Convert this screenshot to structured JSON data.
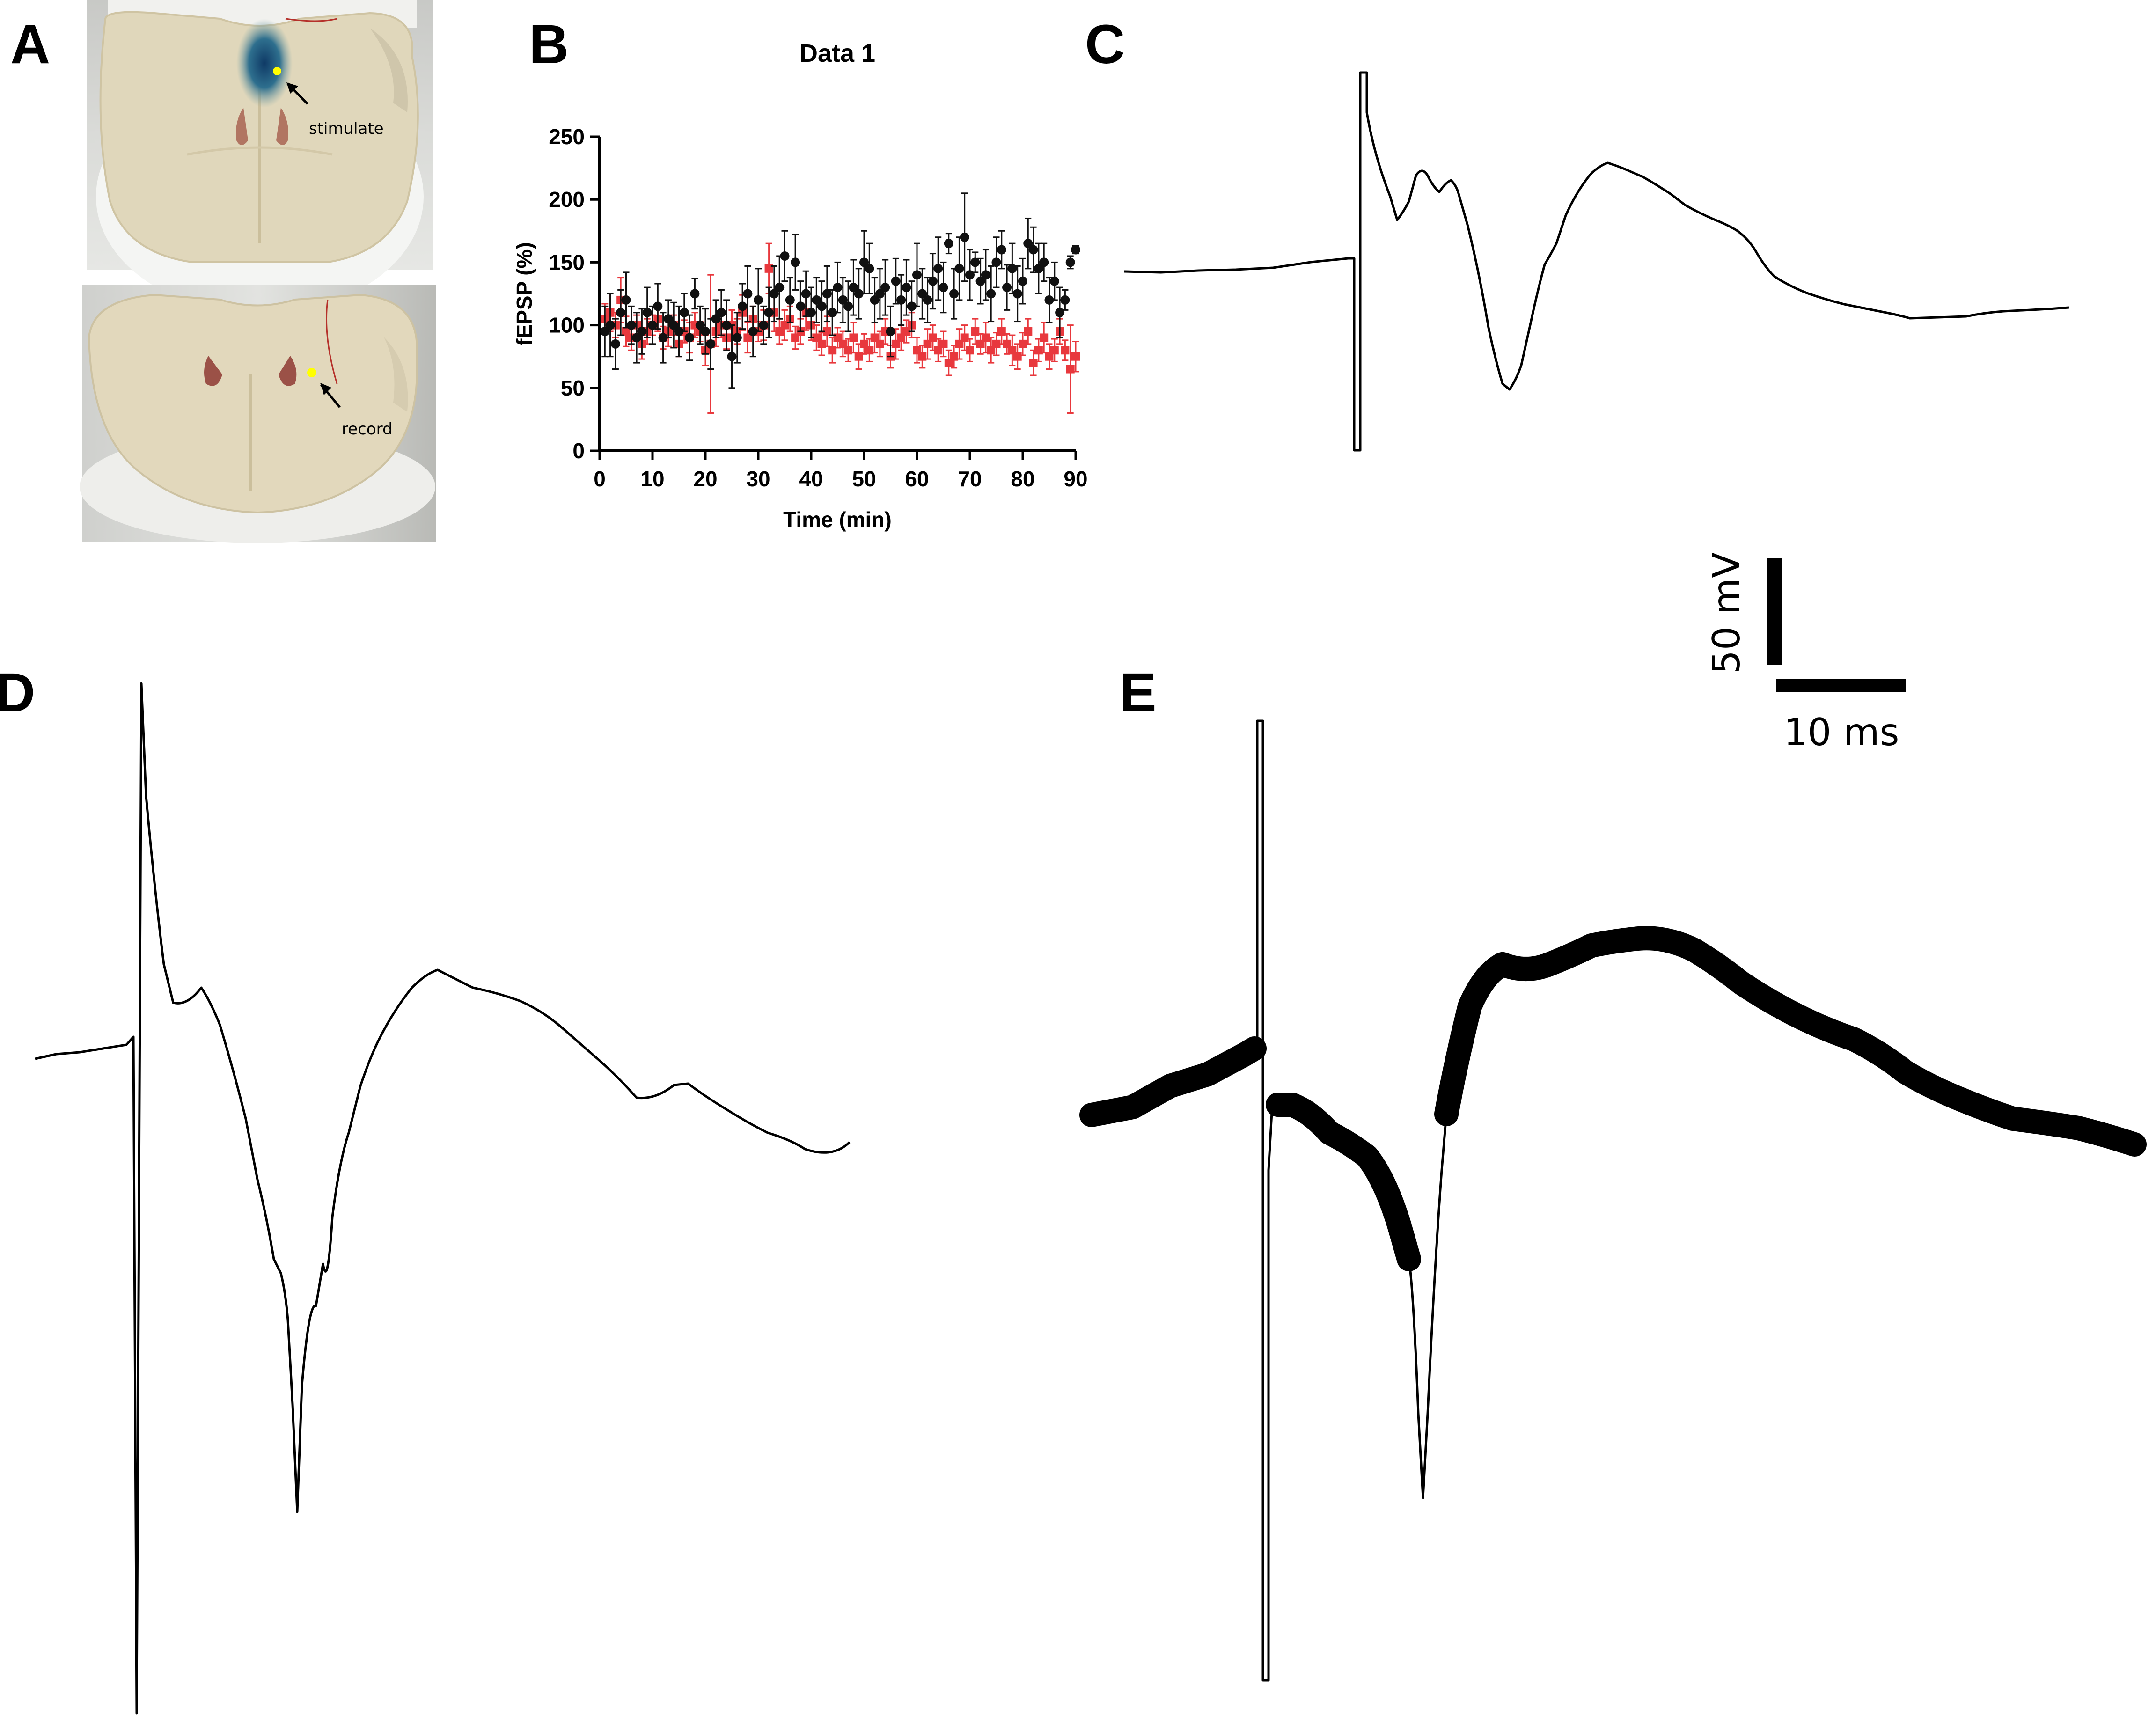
{
  "panels": {
    "a": "A",
    "b": "B",
    "c": "C",
    "d": "D",
    "e": "E"
  },
  "photos": {
    "stimulate_label": "stimulate",
    "record_label": "record",
    "marker_color": "#ffff00",
    "dye_color": "#1d4f7a"
  },
  "scale_bar": {
    "voltage_label": "50 mV",
    "time_label": "10 ms"
  },
  "chart_data": {
    "type": "scatter",
    "title": "Data 1",
    "xlabel": "Time (min)",
    "ylabel": "fEPSP (%)",
    "xlim": [
      0,
      90
    ],
    "ylim": [
      0,
      250
    ],
    "x_ticks": [
      0,
      10,
      20,
      30,
      40,
      50,
      60,
      70,
      80,
      90
    ],
    "y_ticks": [
      0,
      50,
      100,
      150,
      200,
      250
    ],
    "legend": "none",
    "series": [
      {
        "color": "#e8383d",
        "marker": "square",
        "points": [
          [
            1,
            105,
            12
          ],
          [
            2,
            110,
            15
          ],
          [
            3,
            100,
            10
          ],
          [
            4,
            120,
            18
          ],
          [
            5,
            95,
            12
          ],
          [
            6,
            90,
            10
          ],
          [
            7,
            100,
            8
          ],
          [
            8,
            85,
            12
          ],
          [
            9,
            95,
            10
          ],
          [
            10,
            100,
            8
          ],
          [
            11,
            105,
            10
          ],
          [
            12,
            90,
            9
          ],
          [
            13,
            95,
            12
          ],
          [
            14,
            100,
            8
          ],
          [
            15,
            85,
            10
          ],
          [
            16,
            95,
            9
          ],
          [
            17,
            90,
            12
          ],
          [
            18,
            100,
            10
          ],
          [
            19,
            95,
            8
          ],
          [
            20,
            80,
            12
          ],
          [
            21,
            85,
            55
          ],
          [
            22,
            95,
            12
          ],
          [
            23,
            100,
            10
          ],
          [
            24,
            90,
            9
          ],
          [
            25,
            100,
            12
          ],
          [
            26,
            95,
            10
          ],
          [
            27,
            110,
            14
          ],
          [
            28,
            90,
            12
          ],
          [
            29,
            105,
            10
          ],
          [
            30,
            95,
            8
          ],
          [
            31,
            100,
            12
          ],
          [
            32,
            145,
            20
          ],
          [
            33,
            110,
            15
          ],
          [
            34,
            95,
            10
          ],
          [
            35,
            100,
            12
          ],
          [
            36,
            105,
            10
          ],
          [
            37,
            90,
            9
          ],
          [
            38,
            95,
            10
          ],
          [
            39,
            110,
            14
          ],
          [
            40,
            100,
            12
          ],
          [
            41,
            90,
            10
          ],
          [
            42,
            85,
            9
          ],
          [
            43,
            95,
            12
          ],
          [
            44,
            80,
            10
          ],
          [
            45,
            90,
            8
          ],
          [
            46,
            85,
            10
          ],
          [
            47,
            80,
            9
          ],
          [
            48,
            90,
            12
          ],
          [
            49,
            75,
            10
          ],
          [
            50,
            85,
            8
          ],
          [
            51,
            80,
            9
          ],
          [
            52,
            90,
            12
          ],
          [
            53,
            85,
            10
          ],
          [
            54,
            95,
            10
          ],
          [
            55,
            75,
            9
          ],
          [
            56,
            85,
            12
          ],
          [
            57,
            90,
            10
          ],
          [
            58,
            95,
            9
          ],
          [
            59,
            100,
            10
          ],
          [
            60,
            80,
            10
          ],
          [
            61,
            75,
            9
          ],
          [
            62,
            85,
            12
          ],
          [
            63,
            90,
            10
          ],
          [
            64,
            80,
            9
          ],
          [
            65,
            85,
            10
          ],
          [
            66,
            70,
            10
          ],
          [
            67,
            75,
            9
          ],
          [
            68,
            85,
            12
          ],
          [
            69,
            90,
            10
          ],
          [
            70,
            80,
            9
          ],
          [
            71,
            95,
            10
          ],
          [
            72,
            85,
            8
          ],
          [
            73,
            90,
            12
          ],
          [
            74,
            80,
            10
          ],
          [
            75,
            85,
            9
          ],
          [
            76,
            95,
            10
          ],
          [
            77,
            85,
            8
          ],
          [
            78,
            80,
            12
          ],
          [
            79,
            75,
            10
          ],
          [
            80,
            85,
            9
          ],
          [
            81,
            95,
            10
          ],
          [
            82,
            70,
            10
          ],
          [
            83,
            80,
            9
          ],
          [
            84,
            90,
            12
          ],
          [
            85,
            75,
            10
          ],
          [
            86,
            80,
            9
          ],
          [
            87,
            95,
            10
          ],
          [
            88,
            80,
            8
          ],
          [
            89,
            65,
            35
          ],
          [
            90,
            75,
            12
          ]
        ]
      },
      {
        "color": "#111111",
        "marker": "circle",
        "points": [
          [
            1,
            95,
            20
          ],
          [
            2,
            100,
            25
          ],
          [
            3,
            85,
            20
          ],
          [
            4,
            110,
            18
          ],
          [
            5,
            120,
            22
          ],
          [
            6,
            100,
            15
          ],
          [
            7,
            90,
            20
          ],
          [
            8,
            95,
            18
          ],
          [
            9,
            110,
            20
          ],
          [
            10,
            100,
            15
          ],
          [
            11,
            115,
            18
          ],
          [
            12,
            90,
            20
          ],
          [
            13,
            105,
            15
          ],
          [
            14,
            100,
            18
          ],
          [
            15,
            95,
            20
          ],
          [
            16,
            110,
            15
          ],
          [
            17,
            90,
            18
          ],
          [
            18,
            125,
            12
          ],
          [
            19,
            100,
            15
          ],
          [
            20,
            95,
            18
          ],
          [
            21,
            85,
            20
          ],
          [
            22,
            105,
            15
          ],
          [
            23,
            110,
            18
          ],
          [
            24,
            100,
            20
          ],
          [
            25,
            75,
            25
          ],
          [
            26,
            90,
            20
          ],
          [
            27,
            115,
            18
          ],
          [
            28,
            125,
            22
          ],
          [
            29,
            95,
            20
          ],
          [
            30,
            120,
            25
          ],
          [
            31,
            100,
            15
          ],
          [
            32,
            110,
            20
          ],
          [
            33,
            125,
            22
          ],
          [
            34,
            130,
            25
          ],
          [
            35,
            155,
            20
          ],
          [
            36,
            120,
            18
          ],
          [
            37,
            150,
            22
          ],
          [
            38,
            115,
            20
          ],
          [
            39,
            125,
            18
          ],
          [
            40,
            110,
            20
          ],
          [
            41,
            120,
            18
          ],
          [
            42,
            115,
            20
          ],
          [
            43,
            125,
            22
          ],
          [
            44,
            110,
            18
          ],
          [
            45,
            130,
            20
          ],
          [
            46,
            120,
            18
          ],
          [
            47,
            115,
            20
          ],
          [
            48,
            130,
            22
          ],
          [
            49,
            125,
            20
          ],
          [
            50,
            150,
            25
          ],
          [
            51,
            145,
            20
          ],
          [
            52,
            120,
            18
          ],
          [
            53,
            125,
            20
          ],
          [
            54,
            130,
            22
          ],
          [
            55,
            95,
            20
          ],
          [
            56,
            135,
            18
          ],
          [
            57,
            120,
            20
          ],
          [
            58,
            130,
            22
          ],
          [
            59,
            115,
            20
          ],
          [
            60,
            140,
            25
          ],
          [
            61,
            125,
            20
          ],
          [
            62,
            120,
            18
          ],
          [
            63,
            135,
            22
          ],
          [
            64,
            145,
            25
          ],
          [
            65,
            130,
            20
          ],
          [
            66,
            165,
            8
          ],
          [
            67,
            125,
            20
          ],
          [
            68,
            145,
            25
          ],
          [
            69,
            170,
            35
          ],
          [
            70,
            140,
            20
          ],
          [
            71,
            150,
            8
          ],
          [
            72,
            135,
            18
          ],
          [
            73,
            140,
            20
          ],
          [
            74,
            125,
            22
          ],
          [
            75,
            150,
            20
          ],
          [
            76,
            160,
            15
          ],
          [
            77,
            130,
            18
          ],
          [
            78,
            145,
            20
          ],
          [
            79,
            125,
            22
          ],
          [
            80,
            135,
            18
          ],
          [
            81,
            165,
            20
          ],
          [
            82,
            160,
            18
          ],
          [
            83,
            145,
            20
          ],
          [
            84,
            150,
            15
          ],
          [
            85,
            120,
            18
          ],
          [
            86,
            135,
            15
          ],
          [
            87,
            110,
            20
          ],
          [
            88,
            120,
            8
          ],
          [
            89,
            150,
            5
          ],
          [
            90,
            160,
            3
          ]
        ]
      }
    ]
  }
}
